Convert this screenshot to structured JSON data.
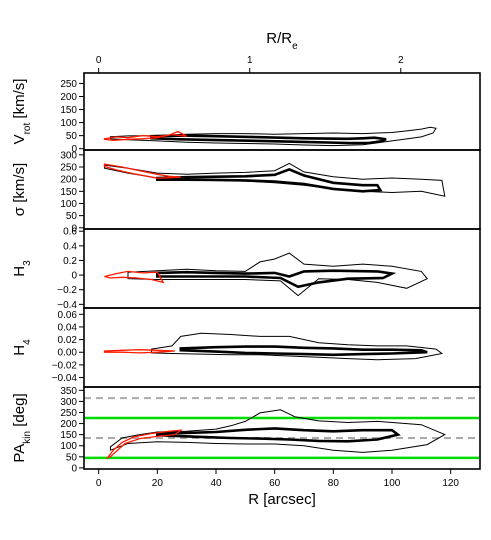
{
  "chart_data": {
    "type": "line",
    "layout": "stacked-panels",
    "x_axis": {
      "label": "R [arcsec]",
      "range": [
        -5,
        130
      ],
      "ticks": [
        0,
        20,
        40,
        60,
        80,
        100,
        120
      ]
    },
    "top_axis": {
      "label": "R/R",
      "label_sub": "e",
      "re_arcsec": 51.5,
      "ticks": [
        0,
        1,
        2
      ]
    },
    "colors": {
      "outer": "#000000",
      "inner": "#000000",
      "model": "#ff1a00",
      "reference": "#00dd00",
      "dashed": "#aaaaaa"
    },
    "panels": [
      {
        "id": "vrot",
        "ylabel_parts": [
          "V",
          "rot",
          " [km/s]"
        ],
        "ylim": [
          -5,
          290
        ],
        "ticks": [
          0,
          50,
          100,
          150,
          200,
          250
        ],
        "tick_labels": [
          "0",
          "50",
          "100",
          "150",
          "200",
          "250"
        ],
        "outer_upper": [
          [
            4,
            46
          ],
          [
            10,
            49
          ],
          [
            20,
            50
          ],
          [
            30,
            55
          ],
          [
            40,
            58
          ],
          [
            50,
            58
          ],
          [
            60,
            55
          ],
          [
            70,
            58
          ],
          [
            80,
            60
          ],
          [
            90,
            58
          ],
          [
            95,
            60
          ],
          [
            100,
            62
          ],
          [
            105,
            68
          ],
          [
            110,
            75
          ],
          [
            113,
            82
          ],
          [
            115,
            78
          ],
          [
            114,
            60
          ],
          [
            110,
            45
          ],
          [
            100,
            30
          ],
          [
            90,
            15
          ],
          [
            80,
            12
          ],
          [
            70,
            14
          ],
          [
            60,
            18
          ],
          [
            50,
            20
          ],
          [
            40,
            22
          ],
          [
            30,
            25
          ],
          [
            20,
            30
          ],
          [
            10,
            34
          ],
          [
            4,
            38
          ]
        ],
        "inner": [
          [
            18,
            48
          ],
          [
            28,
            50
          ],
          [
            40,
            48
          ],
          [
            55,
            44
          ],
          [
            70,
            40
          ],
          [
            85,
            38
          ],
          [
            90,
            40
          ],
          [
            94,
            42
          ],
          [
            98,
            36
          ],
          [
            96,
            28
          ],
          [
            92,
            22
          ],
          [
            85,
            22
          ],
          [
            70,
            26
          ],
          [
            55,
            30
          ],
          [
            40,
            33
          ],
          [
            28,
            36
          ],
          [
            18,
            40
          ]
        ],
        "model": [
          [
            2,
            38
          ],
          [
            6,
            45
          ],
          [
            10,
            42
          ],
          [
            15,
            50
          ],
          [
            20,
            46
          ],
          [
            25,
            54
          ],
          [
            30,
            48
          ],
          [
            27,
            66
          ],
          [
            24,
            52
          ],
          [
            20,
            42
          ],
          [
            15,
            38
          ],
          [
            10,
            36
          ],
          [
            5,
            32
          ],
          [
            2,
            36
          ]
        ]
      },
      {
        "id": "sigma",
        "ylabel_parts": [
          "σ [km/s]"
        ],
        "ylim": [
          -5,
          320
        ],
        "ticks": [
          0,
          50,
          100,
          150,
          200,
          250,
          300
        ],
        "tick_labels": [
          "0",
          "50",
          "100",
          "150",
          "200",
          "250",
          "300"
        ],
        "outer_upper": [
          [
            2,
            258
          ],
          [
            10,
            245
          ],
          [
            20,
            225
          ],
          [
            30,
            220
          ],
          [
            40,
            225
          ],
          [
            50,
            228
          ],
          [
            60,
            235
          ],
          [
            65,
            265
          ],
          [
            70,
            230
          ],
          [
            80,
            210
          ],
          [
            90,
            200
          ],
          [
            100,
            205
          ],
          [
            110,
            200
          ],
          [
            117,
            195
          ],
          [
            118,
            130
          ],
          [
            110,
            150
          ],
          [
            100,
            145
          ],
          [
            90,
            150
          ],
          [
            80,
            160
          ],
          [
            70,
            175
          ],
          [
            60,
            185
          ],
          [
            50,
            192
          ],
          [
            40,
            195
          ],
          [
            30,
            200
          ],
          [
            20,
            205
          ],
          [
            10,
            225
          ],
          [
            2,
            245
          ]
        ],
        "inner": [
          [
            20,
            205
          ],
          [
            30,
            208
          ],
          [
            40,
            210
          ],
          [
            50,
            212
          ],
          [
            60,
            218
          ],
          [
            65,
            240
          ],
          [
            70,
            215
          ],
          [
            80,
            185
          ],
          [
            90,
            175
          ],
          [
            95,
            175
          ],
          [
            96,
            155
          ],
          [
            90,
            150
          ],
          [
            80,
            160
          ],
          [
            70,
            180
          ],
          [
            60,
            190
          ],
          [
            50,
            195
          ],
          [
            40,
            197
          ],
          [
            30,
            198
          ],
          [
            20,
            198
          ]
        ],
        "model": [
          [
            2,
            262
          ],
          [
            8,
            250
          ],
          [
            14,
            235
          ],
          [
            20,
            220
          ],
          [
            24,
            212
          ],
          [
            28,
            208
          ],
          [
            20,
            204
          ],
          [
            12,
            222
          ],
          [
            6,
            238
          ],
          [
            2,
            252
          ]
        ]
      },
      {
        "id": "h3",
        "ylabel_parts": [
          "H",
          "3",
          ""
        ],
        "ylim": [
          -0.45,
          0.63
        ],
        "ticks": [
          -0.4,
          -0.2,
          0,
          0.2,
          0.4,
          0.6
        ],
        "tick_labels": [
          "−0.4",
          "−0.2",
          "0",
          "0.2",
          "0.4",
          "0.6"
        ],
        "outer_upper": [
          [
            10,
            0.04
          ],
          [
            20,
            0.06
          ],
          [
            30,
            0.08
          ],
          [
            40,
            0.06
          ],
          [
            50,
            0.05
          ],
          [
            55,
            0.18
          ],
          [
            60,
            0.22
          ],
          [
            65,
            0.3
          ],
          [
            70,
            0.15
          ],
          [
            80,
            0.12
          ],
          [
            90,
            0.15
          ],
          [
            100,
            0.12
          ],
          [
            110,
            0.05
          ],
          [
            112,
            -0.05
          ],
          [
            105,
            -0.18
          ],
          [
            95,
            -0.1
          ],
          [
            85,
            -0.06
          ],
          [
            75,
            -0.05
          ],
          [
            68,
            -0.28
          ],
          [
            62,
            -0.08
          ],
          [
            50,
            -0.06
          ],
          [
            40,
            -0.06
          ],
          [
            30,
            -0.06
          ],
          [
            20,
            -0.06
          ],
          [
            10,
            -0.05
          ]
        ],
        "inner": [
          [
            20,
            0.03
          ],
          [
            30,
            0.04
          ],
          [
            40,
            0.03
          ],
          [
            50,
            0.02
          ],
          [
            60,
            0.03
          ],
          [
            65,
            -0.02
          ],
          [
            70,
            0.05
          ],
          [
            80,
            0.06
          ],
          [
            95,
            0.05
          ],
          [
            100,
            0.02
          ],
          [
            97,
            -0.04
          ],
          [
            85,
            -0.05
          ],
          [
            75,
            -0.1
          ],
          [
            68,
            -0.16
          ],
          [
            62,
            -0.04
          ],
          [
            50,
            -0.02
          ],
          [
            40,
            -0.02
          ],
          [
            30,
            -0.02
          ],
          [
            20,
            -0.02
          ]
        ],
        "model": [
          [
            2,
            -0.02
          ],
          [
            6,
            0.02
          ],
          [
            10,
            0.05
          ],
          [
            15,
            0.03
          ],
          [
            20,
            0.04
          ],
          [
            22,
            -0.1
          ],
          [
            18,
            -0.06
          ],
          [
            13,
            -0.04
          ],
          [
            8,
            -0.03
          ],
          [
            4,
            -0.04
          ]
        ]
      },
      {
        "id": "h4",
        "ylabel_parts": [
          "H",
          "4",
          ""
        ],
        "ylim": [
          -0.055,
          0.07
        ],
        "ticks": [
          -0.04,
          -0.02,
          0,
          0.02,
          0.04,
          0.06
        ],
        "tick_labels": [
          "−0.04",
          "−0.02",
          "0.00",
          "0.02",
          "0.04",
          "0.06"
        ],
        "outer_upper": [
          [
            18,
            0.005
          ],
          [
            25,
            0.01
          ],
          [
            28,
            0.025
          ],
          [
            35,
            0.03
          ],
          [
            45,
            0.028
          ],
          [
            55,
            0.025
          ],
          [
            65,
            0.025
          ],
          [
            75,
            0.015
          ],
          [
            85,
            0.012
          ],
          [
            95,
            0.01
          ],
          [
            105,
            0.01
          ],
          [
            115,
            0.005
          ],
          [
            117,
            -0.002
          ],
          [
            108,
            -0.01
          ],
          [
            95,
            -0.012
          ],
          [
            85,
            -0.01
          ],
          [
            75,
            -0.008
          ],
          [
            65,
            -0.006
          ],
          [
            55,
            -0.004
          ],
          [
            45,
            -0.004
          ],
          [
            35,
            -0.003
          ],
          [
            25,
            -0.002
          ],
          [
            18,
            -0.001
          ]
        ],
        "inner": [
          [
            28,
            0.006
          ],
          [
            40,
            0.008
          ],
          [
            50,
            0.009
          ],
          [
            60,
            0.009
          ],
          [
            70,
            0.007
          ],
          [
            80,
            0.006
          ],
          [
            90,
            0.004
          ],
          [
            100,
            0.004
          ],
          [
            110,
            0.003
          ],
          [
            112,
            0.0
          ],
          [
            100,
            -0.002
          ],
          [
            90,
            -0.003
          ],
          [
            80,
            -0.004
          ],
          [
            70,
            -0.003
          ],
          [
            60,
            -0.002
          ],
          [
            50,
            -0.001
          ],
          [
            40,
            0.001
          ],
          [
            28,
            0.003
          ]
        ],
        "model": [
          [
            2,
            0.002
          ],
          [
            8,
            0.003
          ],
          [
            14,
            0.004
          ],
          [
            20,
            0.003
          ],
          [
            26,
            0.002
          ],
          [
            20,
            0.0
          ],
          [
            14,
            -0.001
          ],
          [
            8,
            0.0
          ],
          [
            2,
            0.0
          ]
        ]
      },
      {
        "id": "pakin",
        "ylabel_parts": [
          "PA",
          "kin",
          " [deg]"
        ],
        "ylim": [
          -5,
          365
        ],
        "ticks": [
          0,
          50,
          100,
          150,
          200,
          250,
          300,
          350
        ],
        "tick_labels": [
          "0",
          "50",
          "100",
          "150",
          "200",
          "250",
          "300",
          "350"
        ],
        "reference_lines": [
          45,
          225
        ],
        "dashed_lines": [
          135,
          315
        ],
        "outer_upper": [
          [
            4,
            95
          ],
          [
            8,
            135
          ],
          [
            14,
            150
          ],
          [
            20,
            162
          ],
          [
            30,
            165
          ],
          [
            40,
            175
          ],
          [
            45,
            190
          ],
          [
            50,
            210
          ],
          [
            55,
            248
          ],
          [
            62,
            262
          ],
          [
            67,
            230
          ],
          [
            75,
            212
          ],
          [
            85,
            205
          ],
          [
            95,
            210
          ],
          [
            105,
            200
          ],
          [
            110,
            195
          ],
          [
            118,
            150
          ],
          [
            112,
            105
          ],
          [
            100,
            80
          ],
          [
            90,
            70
          ],
          [
            80,
            80
          ],
          [
            70,
            100
          ],
          [
            60,
            108
          ],
          [
            50,
            108
          ],
          [
            40,
            110
          ],
          [
            30,
            115
          ],
          [
            20,
            118
          ],
          [
            10,
            110
          ],
          [
            4,
            80
          ]
        ],
        "inner": [
          [
            20,
            155
          ],
          [
            30,
            158
          ],
          [
            40,
            162
          ],
          [
            50,
            172
          ],
          [
            60,
            178
          ],
          [
            70,
            170
          ],
          [
            80,
            165
          ],
          [
            90,
            170
          ],
          [
            100,
            170
          ],
          [
            102,
            150
          ],
          [
            95,
            128
          ],
          [
            85,
            120
          ],
          [
            75,
            122
          ],
          [
            65,
            128
          ],
          [
            55,
            132
          ],
          [
            45,
            135
          ],
          [
            35,
            140
          ],
          [
            25,
            145
          ],
          [
            20,
            148
          ]
        ],
        "model": [
          [
            3,
            45
          ],
          [
            5,
            80
          ],
          [
            8,
            115
          ],
          [
            12,
            140
          ],
          [
            18,
            155
          ],
          [
            24,
            165
          ],
          [
            28,
            170
          ],
          [
            26,
            150
          ],
          [
            20,
            142
          ],
          [
            14,
            132
          ],
          [
            9,
            110
          ],
          [
            6,
            75
          ],
          [
            4,
            50
          ]
        ]
      }
    ]
  }
}
